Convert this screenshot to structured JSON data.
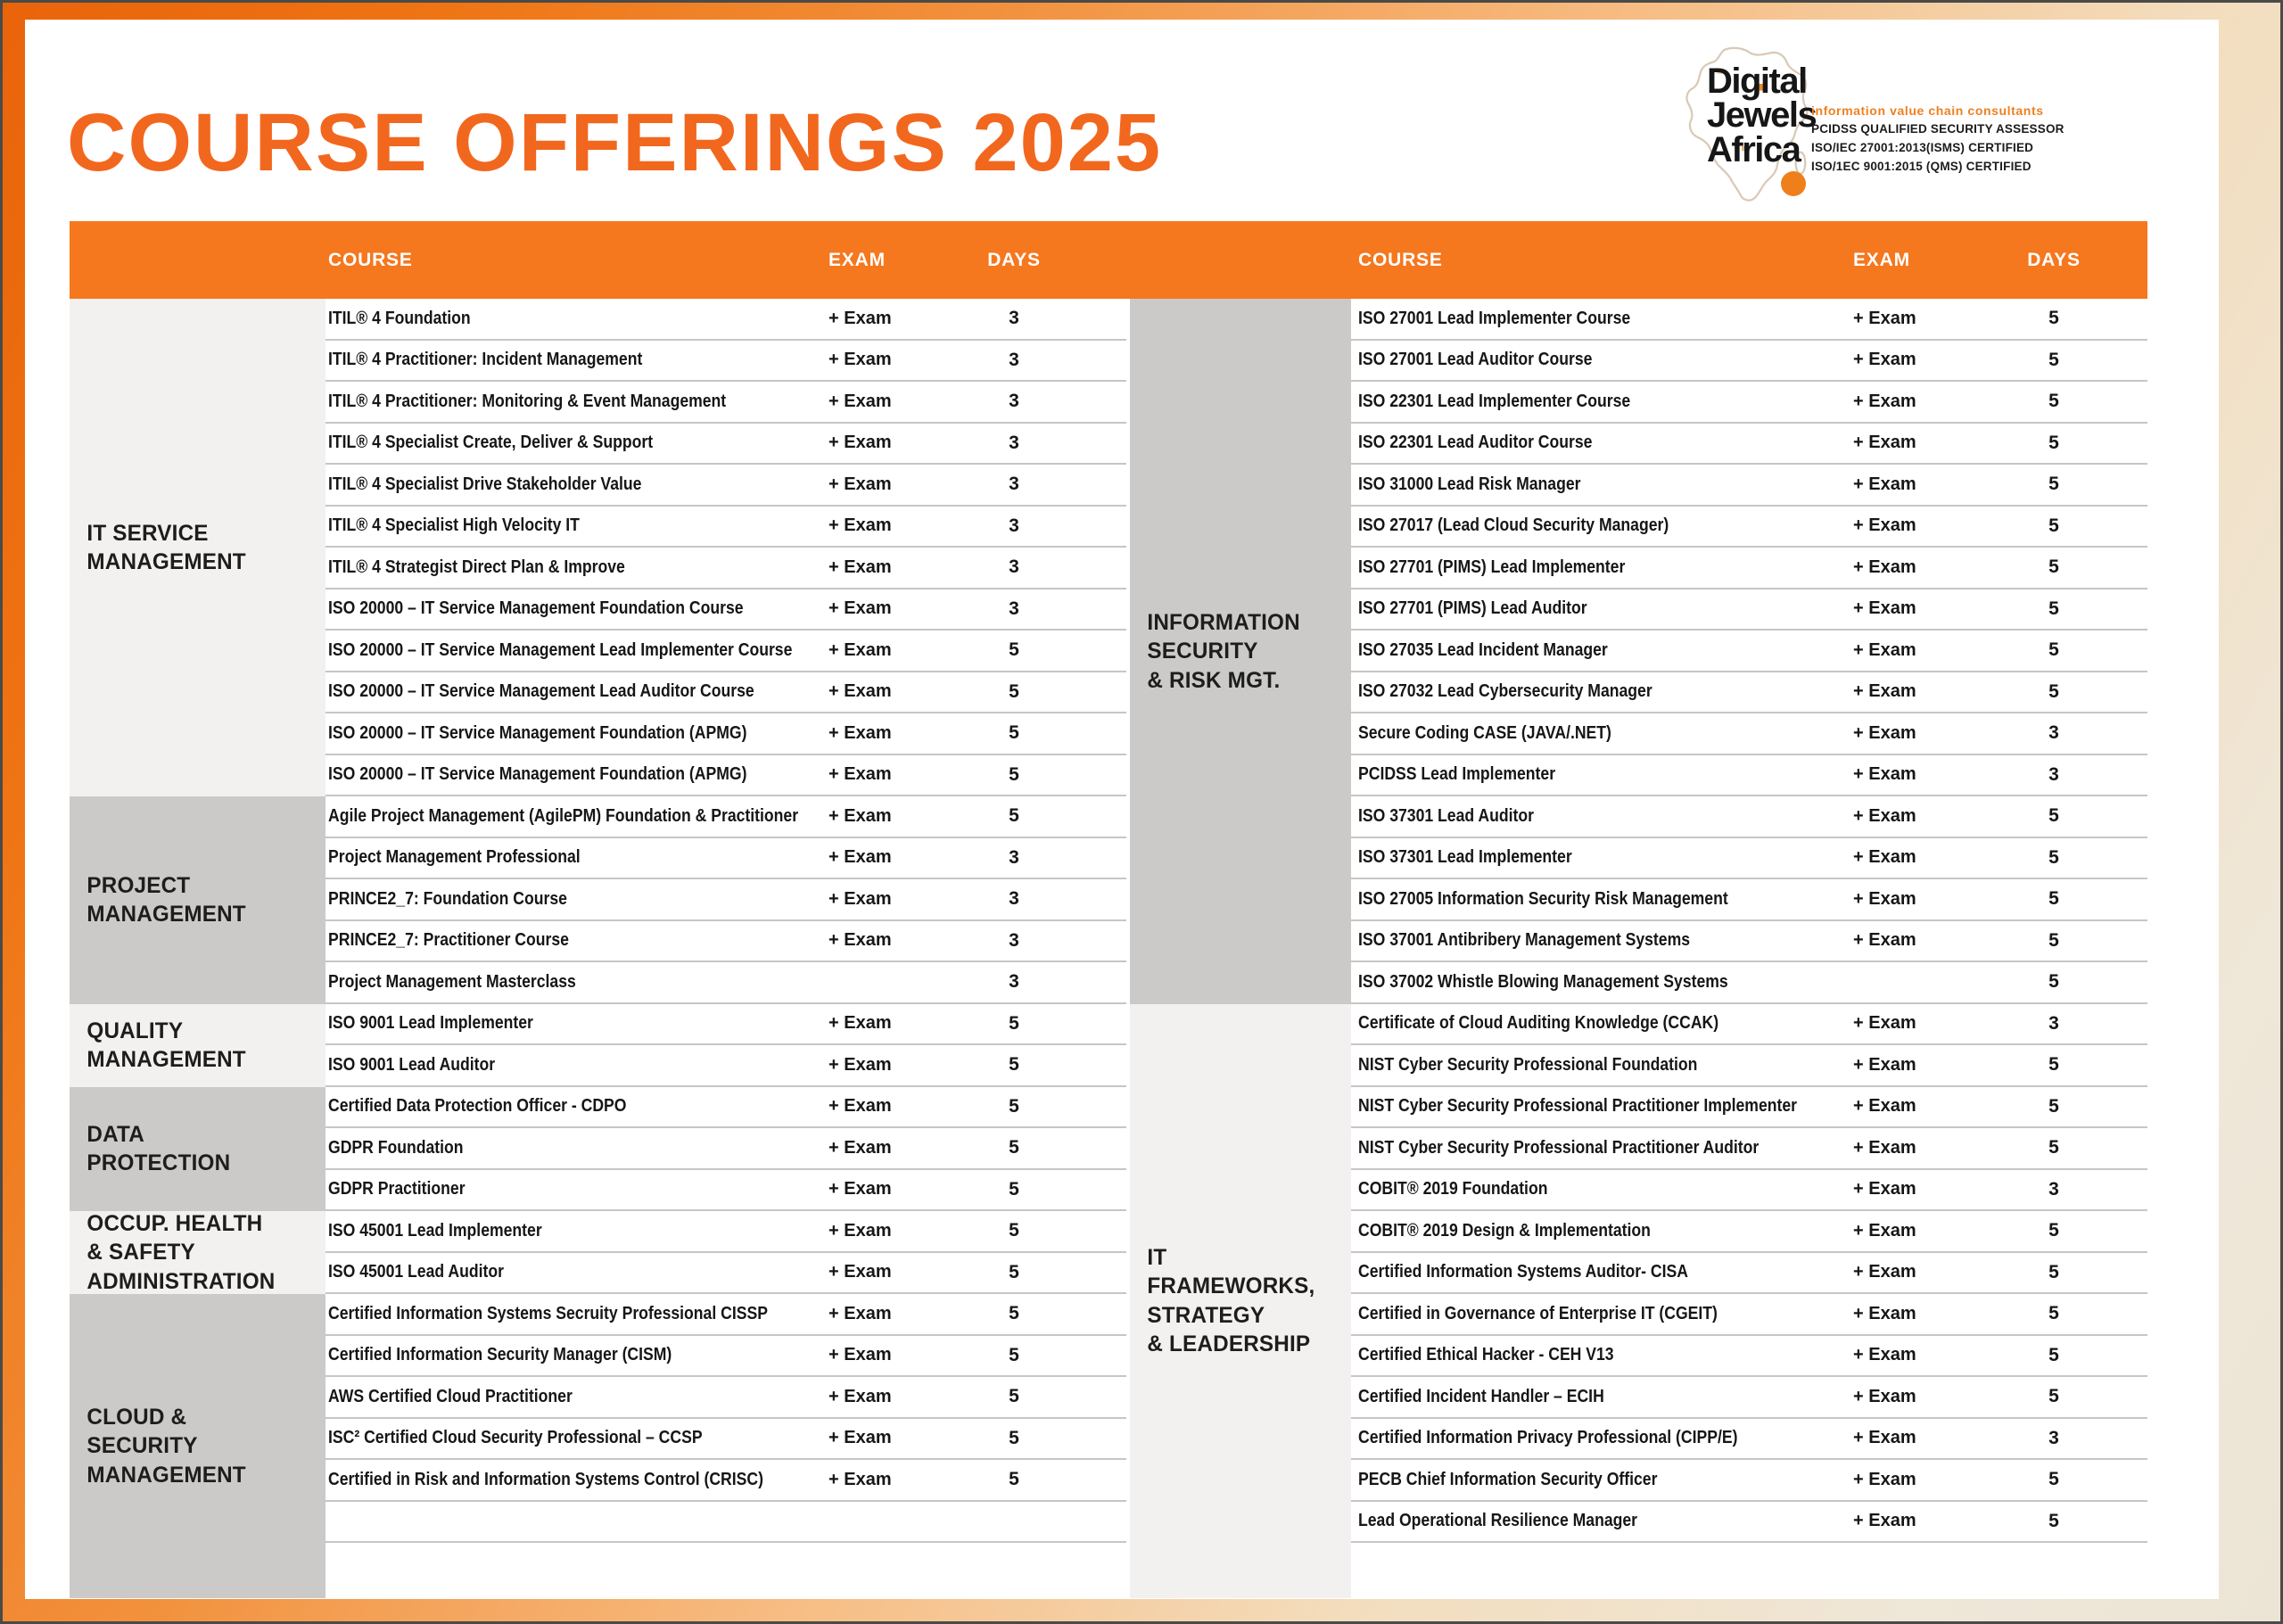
{
  "page": {
    "title": "COURSE OFFERINGS 2025"
  },
  "logo": {
    "name1": "Digital",
    "name2": "Jewels",
    "name3": "Africa",
    "tagline": "information value chain consultants",
    "cert1": "PCIDSS QUALIFIED SECURITY ASSESSOR",
    "cert2": "ISO/IEC 27001:2013(ISMS) CERTIFIED",
    "cert3": "ISO/1EC 9001:2015 (QMS) CERTIFIED"
  },
  "header": {
    "course": "COURSE",
    "exam": "EXAM",
    "days": "DAYS"
  },
  "colors": {
    "accent_orange": "#F5771E",
    "title_orange": "#F2671E",
    "logo_orange": "#EF7F1B",
    "category_light": "#F2F1EF",
    "category_dark": "#CBCAC8",
    "row_line": "#C6C6C6",
    "text": "#161616"
  },
  "left_sections": [
    {
      "category": "IT SERVICE\nMANAGEMENT",
      "shade": "light",
      "rows": [
        {
          "course": "ITIL® 4 Foundation",
          "exam": "+ Exam",
          "days": "3"
        },
        {
          "course": "ITIL® 4 Practitioner: Incident Management",
          "exam": "+ Exam",
          "days": "3"
        },
        {
          "course": "ITIL® 4 Practitioner: Monitoring & Event Management",
          "exam": "+ Exam",
          "days": "3"
        },
        {
          "course": "ITIL® 4 Specialist Create, Deliver & Support",
          "exam": "+ Exam",
          "days": "3"
        },
        {
          "course": "ITIL® 4 Specialist Drive Stakeholder Value",
          "exam": "+ Exam",
          "days": "3"
        },
        {
          "course": "ITIL® 4 Specialist High Velocity IT",
          "exam": "+ Exam",
          "days": "3"
        },
        {
          "course": "ITIL® 4 Strategist Direct Plan & Improve",
          "exam": "+ Exam",
          "days": "3"
        },
        {
          "course": "ISO 20000 – IT Service Management Foundation Course",
          "exam": "+ Exam",
          "days": "3"
        },
        {
          "course": "ISO 20000 – IT Service Management Lead Implementer Course",
          "exam": "+ Exam",
          "days": "5"
        },
        {
          "course": "ISO 20000 – IT Service Management Lead Auditor Course",
          "exam": "+ Exam",
          "days": "5"
        },
        {
          "course": "ISO 20000 – IT Service Management Foundation (APMG)",
          "exam": "+ Exam",
          "days": "5"
        },
        {
          "course": "ISO 20000 – IT Service Management Foundation (APMG)",
          "exam": "+ Exam",
          "days": "5"
        }
      ]
    },
    {
      "category": "PROJECT\nMANAGEMENT",
      "shade": "dark",
      "rows": [
        {
          "course": "Agile Project Management (AgilePM) Foundation & Practitioner",
          "exam": "+ Exam",
          "days": "5"
        },
        {
          "course": "Project Management Professional",
          "exam": "+ Exam",
          "days": "3"
        },
        {
          "course": "PRINCE2_7: Foundation Course",
          "exam": "+ Exam",
          "days": "3"
        },
        {
          "course": "PRINCE2_7: Practitioner Course",
          "exam": "+ Exam",
          "days": "3"
        },
        {
          "course": "Project Management Masterclass",
          "exam": "",
          "days": "3"
        }
      ]
    },
    {
      "category": "QUALITY\nMANAGEMENT",
      "shade": "light",
      "rows": [
        {
          "course": "ISO 9001 Lead Implementer",
          "exam": "+ Exam",
          "days": "5"
        },
        {
          "course": "ISO 9001 Lead Auditor",
          "exam": "+ Exam",
          "days": "5"
        }
      ]
    },
    {
      "category": "DATA\nPROTECTION",
      "shade": "dark",
      "rows": [
        {
          "course": "Certified Data Protection Officer - CDPO",
          "exam": "+ Exam",
          "days": "5"
        },
        {
          "course": "GDPR Foundation",
          "exam": "+ Exam",
          "days": "5"
        },
        {
          "course": "GDPR Practitioner",
          "exam": "+ Exam",
          "days": "5"
        }
      ]
    },
    {
      "category": "OCCUP. HEALTH\n& SAFETY\nADMINISTRATION",
      "shade": "light",
      "rows": [
        {
          "course": "ISO 45001 Lead Implementer",
          "exam": "+ Exam",
          "days": "5"
        },
        {
          "course": "ISO 45001 Lead Auditor",
          "exam": "+ Exam",
          "days": "5"
        }
      ]
    },
    {
      "category": "CLOUD &\nSECURITY\nMANAGEMENT",
      "shade": "dark",
      "rows": [
        {
          "course": "Certified Information Systems Secruity Professional CISSP",
          "exam": "+ Exam",
          "days": "5"
        },
        {
          "course": "Certified Information Security Manager (CISM)",
          "exam": "+ Exam",
          "days": "5"
        },
        {
          "course": "AWS Certified Cloud Practitioner",
          "exam": "+ Exam",
          "days": "5"
        },
        {
          "course": "ISC² Certified Cloud Security Professional – CCSP",
          "exam": "+ Exam",
          "days": "5"
        },
        {
          "course": "Certified in Risk and Information Systems Control (CRISC)",
          "exam": "+ Exam",
          "days": "5"
        },
        {
          "course": "",
          "exam": "",
          "days": "",
          "separator": true
        },
        {
          "course": "",
          "exam": "",
          "days": "",
          "separator": false
        }
      ]
    }
  ],
  "right_sections": [
    {
      "category": "INFORMATION\nSECURITY\n& RISK MGT.",
      "shade": "dark",
      "rows": [
        {
          "course": "ISO 27001 Lead Implementer Course",
          "exam": "+ Exam",
          "days": "5"
        },
        {
          "course": "ISO 27001 Lead Auditor Course",
          "exam": "+ Exam",
          "days": "5"
        },
        {
          "course": "ISO 22301 Lead Implementer Course",
          "exam": "+ Exam",
          "days": "5"
        },
        {
          "course": "ISO 22301 Lead Auditor Course",
          "exam": "+ Exam",
          "days": "5"
        },
        {
          "course": "ISO 31000 Lead Risk Manager",
          "exam": "+ Exam",
          "days": "5"
        },
        {
          "course": "ISO 27017 (Lead Cloud Security Manager)",
          "exam": "+ Exam",
          "days": "5"
        },
        {
          "course": "ISO 27701 (PIMS) Lead Implementer",
          "exam": "+ Exam",
          "days": "5"
        },
        {
          "course": "ISO 27701 (PIMS) Lead Auditor",
          "exam": "+ Exam",
          "days": "5"
        },
        {
          "course": "ISO 27035 Lead Incident Manager",
          "exam": "+ Exam",
          "days": "5"
        },
        {
          "course": "ISO 27032 Lead Cybersecurity Manager",
          "exam": "+ Exam",
          "days": "5"
        },
        {
          "course": "Secure Coding CASE (JAVA/.NET)",
          "exam": "+ Exam",
          "days": "3"
        },
        {
          "course": "PCIDSS Lead Implementer",
          "exam": "+ Exam",
          "days": "3"
        },
        {
          "course": "ISO 37301 Lead Auditor",
          "exam": "+ Exam",
          "days": "5"
        },
        {
          "course": "ISO 37301 Lead Implementer",
          "exam": "+ Exam",
          "days": "5"
        },
        {
          "course": "ISO 27005 Information Security Risk Management",
          "exam": "+ Exam",
          "days": "5"
        },
        {
          "course": "ISO 37001 Antibribery Management Systems",
          "exam": "+ Exam",
          "days": "5"
        },
        {
          "course": "ISO 37002 Whistle Blowing Management Systems",
          "exam": "",
          "days": "5"
        }
      ]
    },
    {
      "category": "IT\nFRAMEWORKS,\nSTRATEGY\n& LEADERSHIP",
      "shade": "light",
      "rows": [
        {
          "course": "Certificate of Cloud Auditing Knowledge (CCAK)",
          "exam": "+ Exam",
          "days": "3"
        },
        {
          "course": "NIST Cyber Security Professional Foundation",
          "exam": "+ Exam",
          "days": "5"
        },
        {
          "course": "NIST Cyber Security Professional Practitioner Implementer",
          "exam": "+ Exam",
          "days": "5"
        },
        {
          "course": "NIST Cyber Security Professional Practitioner Auditor",
          "exam": "+ Exam",
          "days": "5"
        },
        {
          "course": "COBIT®  2019 Foundation",
          "exam": "+ Exam",
          "days": "3"
        },
        {
          "course": "COBIT®  2019 Design & Implementation",
          "exam": "+ Exam",
          "days": "5"
        },
        {
          "course": "Certified Information Systems Auditor- CISA",
          "exam": "+ Exam",
          "days": "5"
        },
        {
          "course": "Certified in Governance of Enterprise IT (CGEIT)",
          "exam": "+ Exam",
          "days": "5"
        },
        {
          "course": "Certified Ethical Hacker - CEH V13",
          "exam": "+ Exam",
          "days": "5"
        },
        {
          "course": "Certified Incident Handler – ECIH",
          "exam": "+ Exam",
          "days": "5"
        },
        {
          "course": "Certified Information Privacy Professional (CIPP/E)",
          "exam": "+ Exam",
          "days": "3"
        },
        {
          "course": "PECB Chief Information Security Officer",
          "exam": "+ Exam",
          "days": "5"
        },
        {
          "course": "Lead Operational Resilience Manager",
          "exam": "+ Exam",
          "days": "5"
        },
        {
          "course": "",
          "exam": "",
          "days": "",
          "separator": false
        }
      ]
    }
  ]
}
